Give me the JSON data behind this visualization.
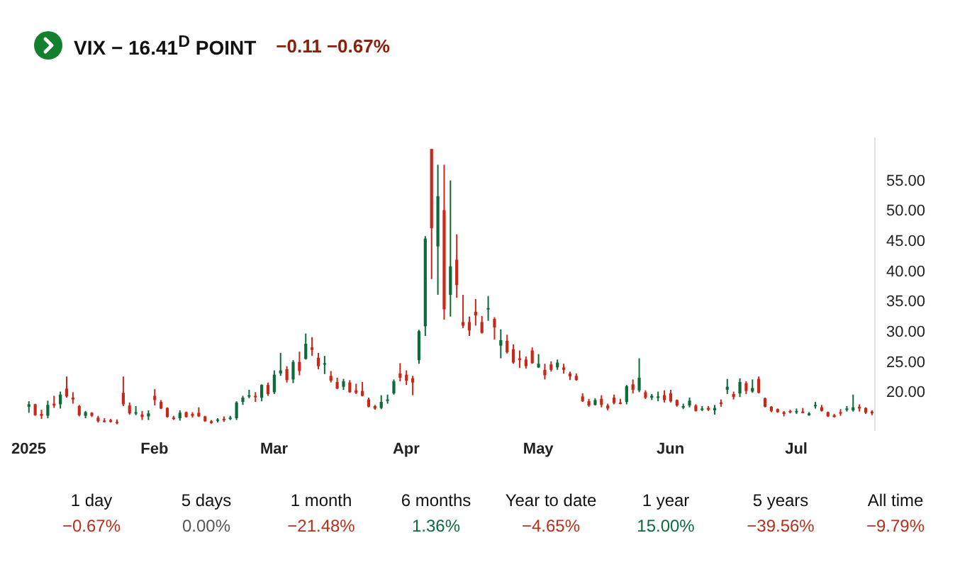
{
  "chart_data": [
    {
      "type": "candlestick",
      "title": "VIX − 16.41$^{D}$ POINT",
      "subtitle": "−0.11 −0.67%",
      "categories": [
        "2025",
        null,
        null,
        null,
        null,
        null,
        null,
        null,
        null,
        null,
        null,
        null,
        null,
        null,
        null,
        null,
        null,
        null,
        null,
        null,
        "Feb",
        null,
        null,
        null,
        null,
        null,
        null,
        null,
        null,
        null,
        null,
        null,
        null,
        null,
        null,
        null,
        null,
        null,
        null,
        "Mar",
        null,
        null,
        null,
        null,
        null,
        null,
        null,
        null,
        null,
        null,
        null,
        null,
        null,
        null,
        null,
        null,
        null,
        null,
        null,
        null,
        "Apr",
        null,
        null,
        null,
        null,
        null,
        null,
        null,
        null,
        null,
        null,
        null,
        null,
        null,
        null,
        null,
        null,
        null,
        null,
        null,
        null,
        "May",
        null,
        null,
        null,
        null,
        null,
        null,
        null,
        null,
        null,
        null,
        null,
        null,
        null,
        null,
        null,
        null,
        null,
        null,
        null,
        null,
        "Jun",
        null,
        null,
        null,
        null,
        null,
        null,
        null,
        null,
        null,
        null,
        null,
        null,
        null,
        null,
        null,
        null,
        null,
        null,
        null,
        "Jul",
        null,
        null,
        null,
        null,
        null,
        null,
        null,
        null,
        null,
        null,
        null,
        null
      ],
      "ohlc": [
        [
          17.5,
          18.4,
          16.5,
          17.9
        ],
        [
          17.9,
          18.0,
          16.0,
          16.1
        ],
        [
          16.3,
          17.0,
          15.5,
          16.0
        ],
        [
          16.0,
          18.5,
          15.6,
          17.8
        ],
        [
          18.0,
          19.3,
          17.3,
          17.7
        ],
        [
          17.9,
          20.0,
          17.2,
          19.5
        ],
        [
          20.5,
          22.5,
          19.0,
          19.2
        ],
        [
          19.0,
          19.9,
          18.0,
          18.7
        ],
        [
          17.6,
          17.8,
          15.9,
          16.1
        ],
        [
          16.0,
          16.8,
          15.6,
          16.6
        ],
        [
          16.5,
          16.6,
          15.8,
          16.0
        ],
        [
          15.7,
          16.0,
          14.9,
          15.1
        ],
        [
          15.2,
          15.6,
          14.9,
          15.1
        ],
        [
          15.3,
          15.5,
          14.9,
          15.0
        ],
        [
          15.0,
          15.4,
          14.6,
          14.9
        ],
        [
          19.8,
          22.5,
          17.6,
          17.9
        ],
        [
          17.7,
          18.2,
          16.2,
          16.4
        ],
        [
          16.4,
          17.6,
          16.1,
          16.6
        ],
        [
          16.2,
          16.8,
          15.3,
          15.8
        ],
        [
          15.9,
          16.9,
          15.3,
          16.4
        ],
        [
          19.3,
          20.4,
          17.7,
          18.6
        ],
        [
          18.3,
          18.6,
          17.1,
          17.2
        ],
        [
          17.3,
          17.4,
          15.7,
          15.8
        ],
        [
          15.7,
          16.0,
          15.3,
          15.5
        ],
        [
          15.6,
          16.9,
          15.2,
          16.5
        ],
        [
          16.6,
          16.7,
          15.7,
          15.8
        ],
        [
          16.3,
          16.6,
          15.7,
          16.0
        ],
        [
          16.5,
          17.4,
          15.8,
          15.9
        ],
        [
          15.9,
          16.0,
          15.0,
          15.1
        ],
        [
          15.1,
          15.3,
          14.7,
          14.8
        ],
        [
          15.3,
          15.6,
          14.9,
          15.4
        ],
        [
          15.5,
          15.9,
          15.0,
          15.3
        ],
        [
          15.5,
          16.0,
          15.3,
          15.7
        ],
        [
          15.6,
          18.4,
          15.3,
          18.2
        ],
        [
          18.3,
          19.3,
          17.8,
          19.0
        ],
        [
          19.2,
          20.3,
          18.9,
          19.4
        ],
        [
          19.3,
          19.9,
          18.3,
          19.1
        ],
        [
          19.0,
          21.2,
          18.4,
          21.1
        ],
        [
          21.1,
          21.5,
          19.3,
          19.6
        ],
        [
          19.9,
          23.5,
          19.6,
          22.8
        ],
        [
          23.0,
          26.4,
          22.6,
          23.5
        ],
        [
          23.7,
          24.2,
          21.5,
          21.9
        ],
        [
          22.0,
          25.2,
          21.4,
          24.9
        ],
        [
          24.9,
          26.6,
          22.7,
          23.4
        ],
        [
          25.4,
          29.6,
          25.3,
          27.9
        ],
        [
          27.3,
          29.0,
          25.9,
          26.9
        ],
        [
          25.6,
          26.4,
          23.7,
          24.2
        ],
        [
          24.7,
          25.9,
          22.9,
          24.7
        ],
        [
          22.6,
          23.4,
          21.5,
          21.8
        ],
        [
          21.6,
          22.3,
          20.4,
          20.5
        ],
        [
          20.8,
          22.1,
          20.3,
          21.7
        ],
        [
          21.5,
          21.9,
          19.8,
          19.9
        ],
        [
          20.2,
          21.3,
          19.6,
          19.8
        ],
        [
          20.1,
          21.6,
          19.2,
          19.3
        ],
        [
          18.7,
          19.0,
          17.4,
          17.5
        ],
        [
          17.6,
          17.8,
          17.0,
          17.2
        ],
        [
          17.3,
          19.4,
          17.1,
          18.3
        ],
        [
          18.7,
          19.5,
          18.0,
          18.7
        ],
        [
          19.7,
          22.0,
          19.5,
          21.7
        ],
        [
          23.0,
          24.7,
          21.7,
          22.3
        ],
        [
          22.8,
          23.5,
          21.1,
          21.8
        ],
        [
          22.2,
          22.6,
          19.4,
          21.5
        ],
        [
          25.2,
          30.2,
          24.6,
          30.0
        ],
        [
          30.8,
          45.7,
          29.2,
          45.3
        ],
        [
          60.1,
          60.1,
          38.6,
          47.0
        ],
        [
          44.0,
          57.5,
          36.0,
          52.3
        ],
        [
          50.0,
          57.5,
          31.9,
          33.6
        ],
        [
          36.0,
          54.9,
          32.4,
          40.7
        ],
        [
          41.8,
          46.0,
          35.5,
          37.6
        ],
        [
          31.5,
          36.0,
          30.5,
          30.9
        ],
        [
          31.5,
          32.4,
          29.2,
          30.1
        ],
        [
          33.2,
          35.3,
          30.9,
          32.6
        ],
        [
          31.5,
          32.5,
          29.6,
          29.7
        ],
        [
          33.6,
          35.8,
          31.7,
          33.8
        ],
        [
          32.0,
          32.3,
          28.6,
          30.6
        ],
        [
          27.6,
          30.3,
          25.5,
          28.5
        ],
        [
          28.4,
          29.4,
          26.3,
          26.5
        ],
        [
          27.0,
          27.8,
          24.6,
          24.8
        ],
        [
          25.5,
          26.8,
          23.9,
          25.2
        ],
        [
          25.3,
          25.8,
          23.8,
          24.2
        ],
        [
          26.8,
          27.3,
          24.6,
          24.7
        ],
        [
          24.0,
          26.2,
          23.9,
          24.6
        ],
        [
          23.6,
          24.6,
          22.0,
          22.7
        ],
        [
          24.5,
          25.0,
          23.3,
          23.6
        ],
        [
          24.0,
          25.3,
          23.6,
          24.8
        ],
        [
          24.0,
          24.6,
          23.0,
          23.6
        ],
        [
          23.0,
          23.3,
          21.9,
          22.5
        ],
        [
          22.6,
          23.0,
          21.8,
          21.9
        ],
        [
          19.2,
          19.7,
          18.3,
          18.4
        ],
        [
          18.4,
          18.8,
          17.5,
          17.7
        ],
        [
          17.8,
          18.9,
          17.7,
          18.6
        ],
        [
          18.8,
          19.4,
          17.4,
          17.8
        ],
        [
          17.7,
          18.0,
          16.9,
          17.2
        ],
        [
          19.0,
          19.5,
          17.9,
          18.1
        ],
        [
          18.2,
          18.8,
          17.9,
          18.1
        ],
        [
          18.3,
          21.1,
          17.9,
          20.9
        ],
        [
          21.2,
          22.0,
          19.7,
          20.3
        ],
        [
          20.2,
          25.5,
          19.9,
          22.3
        ],
        [
          19.9,
          20.2,
          18.8,
          19.0
        ],
        [
          19.0,
          19.6,
          18.6,
          19.3
        ],
        [
          19.0,
          20.0,
          18.4,
          19.2
        ],
        [
          19.4,
          20.2,
          18.2,
          18.6
        ],
        [
          19.7,
          20.3,
          18.2,
          18.4
        ],
        [
          18.6,
          18.7,
          17.5,
          17.7
        ],
        [
          17.6,
          18.0,
          17.1,
          17.6
        ],
        [
          17.7,
          19.0,
          17.4,
          18.5
        ],
        [
          17.7,
          17.9,
          16.7,
          16.8
        ],
        [
          17.1,
          17.6,
          16.8,
          17.2
        ],
        [
          17.3,
          17.6,
          16.8,
          17.0
        ],
        [
          16.9,
          17.8,
          16.2,
          17.3
        ],
        [
          18.2,
          18.7,
          17.5,
          18.0
        ],
        [
          20.3,
          22.1,
          19.6,
          20.8
        ],
        [
          19.6,
          20.0,
          18.7,
          19.1
        ],
        [
          19.7,
          22.2,
          19.1,
          21.6
        ],
        [
          21.4,
          21.7,
          19.6,
          20.1
        ],
        [
          20.0,
          22.0,
          19.8,
          20.6
        ],
        [
          22.1,
          22.5,
          19.7,
          19.8
        ],
        [
          18.9,
          19.0,
          17.4,
          17.5
        ],
        [
          17.5,
          17.6,
          16.6,
          16.8
        ],
        [
          17.1,
          17.2,
          16.5,
          16.6
        ],
        [
          16.6,
          16.8,
          15.9,
          16.3
        ],
        [
          16.8,
          17.0,
          16.4,
          16.7
        ],
        [
          16.6,
          17.2,
          16.3,
          16.8
        ],
        [
          16.7,
          17.3,
          16.4,
          16.6
        ],
        [
          16.1,
          16.6,
          16.0,
          16.4
        ],
        [
          17.6,
          18.3,
          17.2,
          17.8
        ],
        [
          17.4,
          17.8,
          16.7,
          16.8
        ],
        [
          16.6,
          16.7,
          15.8,
          15.9
        ],
        [
          16.1,
          16.3,
          15.7,
          15.8
        ],
        [
          16.6,
          17.1,
          16.0,
          16.4
        ],
        [
          17.0,
          17.6,
          16.7,
          17.2
        ],
        [
          16.9,
          19.5,
          16.7,
          17.4
        ],
        [
          17.5,
          17.9,
          16.7,
          17.2
        ],
        [
          17.3,
          17.4,
          16.3,
          16.5
        ],
        [
          16.7,
          16.9,
          16.1,
          16.4
        ]
      ],
      "ylim": [
        13.5,
        62
      ],
      "yticks": [
        {
          "value": 20,
          "label": "20.00"
        },
        {
          "value": 25,
          "label": "25.00"
        },
        {
          "value": 30,
          "label": "30.00"
        },
        {
          "value": 35,
          "label": "35.00"
        },
        {
          "value": 40,
          "label": "40.00"
        },
        {
          "value": 45,
          "label": "45.00"
        },
        {
          "value": 50,
          "label": "50.00"
        },
        {
          "value": 55,
          "label": "55.00"
        }
      ],
      "grid": false,
      "legend": false
    },
    {
      "type": "other",
      "categories": [
        "1 day",
        "5 days",
        "1 month",
        "6 months",
        "Year to date",
        "1 year",
        "5 years",
        "All time"
      ],
      "value_labels": [
        "−0.67%",
        "0.00%",
        "−21.48%",
        "1.36%",
        "−4.65%",
        "15.00%",
        "−39.56%",
        "−9.79%"
      ],
      "colors": [
        "#b5301c",
        "#555555",
        "#b5301c",
        "#0b6b3a",
        "#b5301c",
        "#0b6b3a",
        "#b5301c",
        "#b5301c"
      ]
    }
  ]
}
